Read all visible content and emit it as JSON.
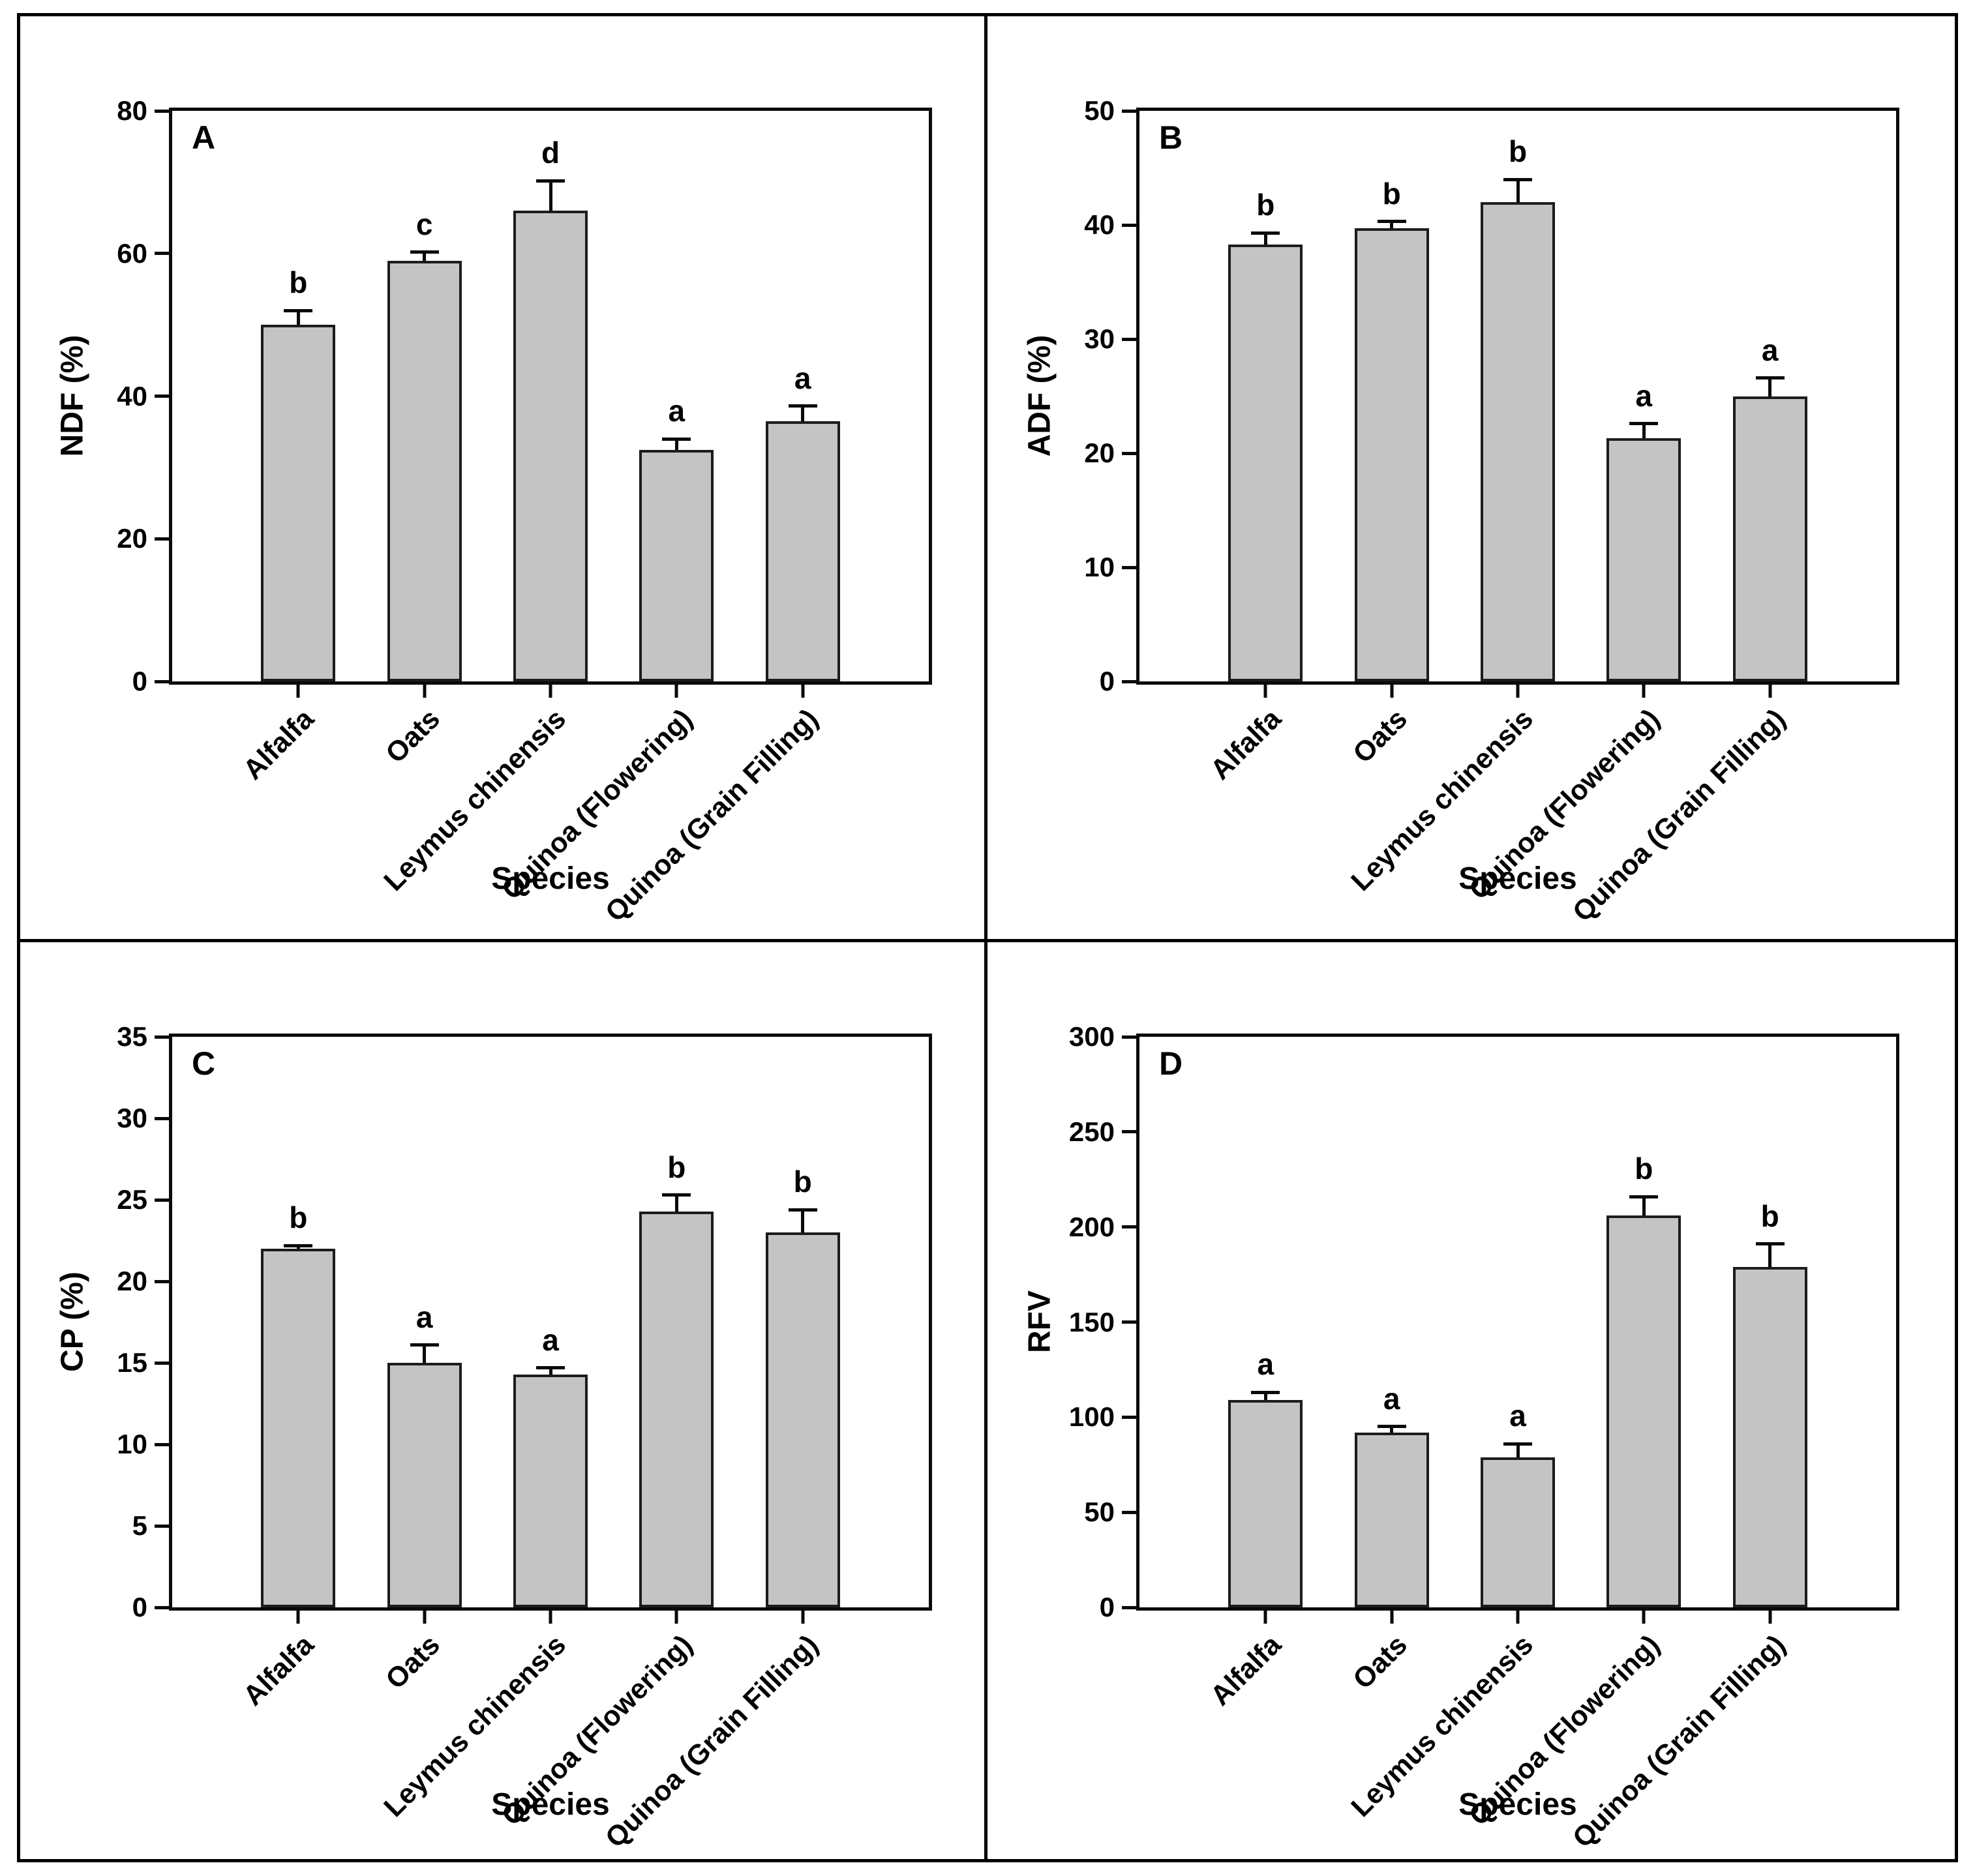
{
  "figure": {
    "background": "#ffffff",
    "bar_fill": "#c4c4c4",
    "bar_border": "#1c1c1c",
    "axis_color": "#0a0a0a",
    "text_color": "#000000"
  },
  "chart_data": [
    {
      "type": "bar",
      "panel_label": "A",
      "xlabel": "Species",
      "ylabel": "NDF (%)",
      "categories": [
        "Alfalfa",
        "Oats",
        "Leymus chinensis",
        "Quinoa (Flowering)",
        "Quinoa (Grain Filling)"
      ],
      "values": [
        50,
        59,
        66,
        32.5,
        36.5
      ],
      "errors_upper": [
        2,
        1.2,
        4.2,
        1.5,
        2.1
      ],
      "sig_letters": [
        "b",
        "c",
        "d",
        "a",
        "a"
      ],
      "ylim": [
        0,
        80
      ],
      "yticks": [
        0,
        20,
        40,
        60,
        80
      ],
      "grid": false,
      "legend_position": "none"
    },
    {
      "type": "bar",
      "panel_label": "B",
      "xlabel": "Species",
      "ylabel": "ADF (%)",
      "categories": [
        "Alfalfa",
        "Oats",
        "Leymus chinensis",
        "Quinoa (Flowering)",
        "Quinoa (Grain Filling)"
      ],
      "values": [
        38.3,
        39.7,
        42,
        21.3,
        25
      ],
      "errors_upper": [
        1,
        0.6,
        2,
        1.3,
        1.6
      ],
      "sig_letters": [
        "b",
        "b",
        "b",
        "a",
        "a"
      ],
      "ylim": [
        0,
        50
      ],
      "yticks": [
        0,
        10,
        20,
        30,
        40,
        50
      ],
      "grid": false,
      "legend_position": "none"
    },
    {
      "type": "bar",
      "panel_label": "C",
      "xlabel": "Species",
      "ylabel": "CP (%)",
      "categories": [
        "Alfalfa",
        "Oats",
        "Leymus chinensis",
        "Quinoa (Flowering)",
        "Quinoa (Grain Filling)"
      ],
      "values": [
        22,
        15,
        14.3,
        24.3,
        23
      ],
      "errors_upper": [
        0.2,
        1.1,
        0.4,
        1,
        1.4
      ],
      "sig_letters": [
        "b",
        "a",
        "a",
        "b",
        "b"
      ],
      "ylim": [
        0,
        35
      ],
      "yticks": [
        0,
        5,
        10,
        15,
        20,
        25,
        30,
        35
      ],
      "grid": false,
      "legend_position": "none"
    },
    {
      "type": "bar",
      "panel_label": "D",
      "xlabel": "Species",
      "ylabel": "RFV",
      "categories": [
        "Alfalfa",
        "Oats",
        "Leymus chinensis",
        "Quinoa (Flowering)",
        "Quinoa (Grain Filling)"
      ],
      "values": [
        109,
        92,
        79,
        206,
        179
      ],
      "errors_upper": [
        4,
        3,
        7,
        10,
        12
      ],
      "sig_letters": [
        "a",
        "a",
        "a",
        "b",
        "b"
      ],
      "ylim": [
        0,
        300
      ],
      "yticks": [
        0,
        50,
        100,
        150,
        200,
        250,
        300
      ],
      "grid": false,
      "legend_position": "none"
    }
  ]
}
